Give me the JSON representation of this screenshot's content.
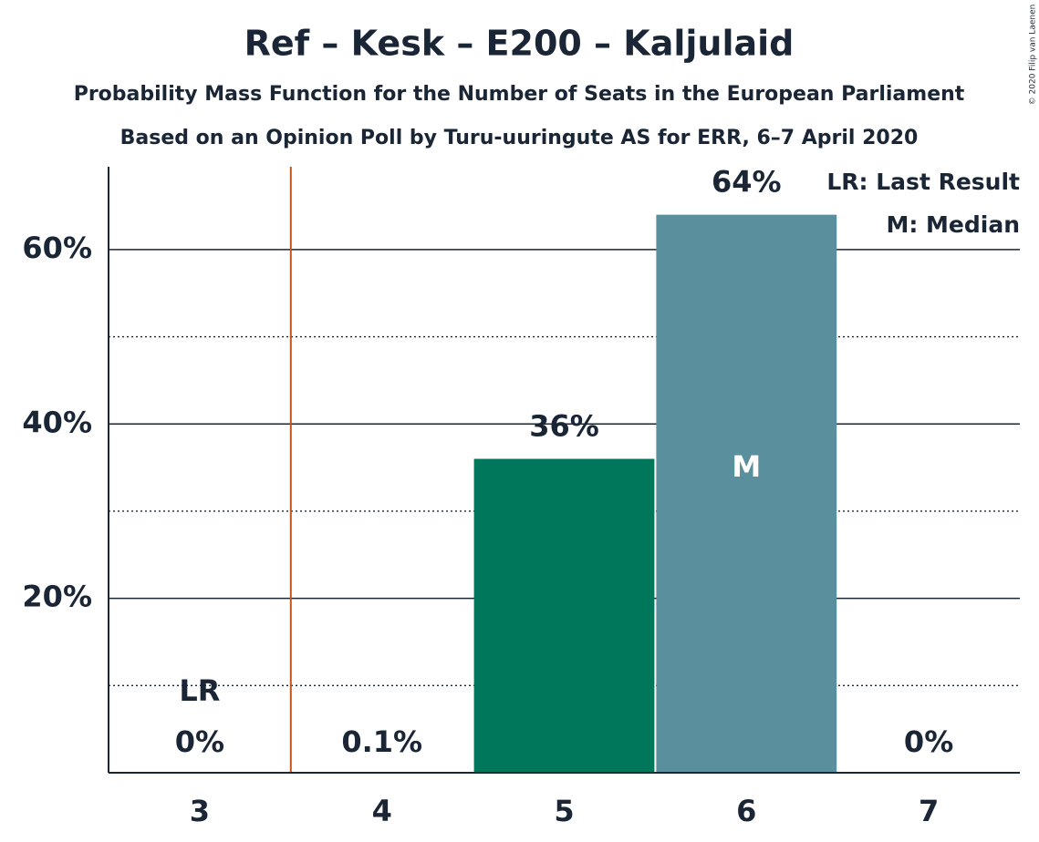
{
  "chart_data": {
    "type": "bar",
    "title": "Ref – Kesk – E200 – Kaljulaid",
    "subtitle": "Probability Mass Function for the Number of Seats in the European Parliament",
    "subtitle2": "Based on an Opinion Poll by Turu-uuringute AS for ERR, 6–7 April 2020",
    "categories": [
      "3",
      "4",
      "5",
      "6",
      "7"
    ],
    "values": [
      0,
      0.1,
      36,
      64,
      0
    ],
    "value_labels": [
      "0%",
      "0.1%",
      "36%",
      "64%",
      "0%"
    ],
    "colors": [
      "#00765a",
      "#00765a",
      "#00765a",
      "#5a8f9e",
      "#5a8f9e"
    ],
    "ylim": [
      0,
      69.5
    ],
    "yticks": [
      {
        "value": 20,
        "label": "20%"
      },
      {
        "value": 40,
        "label": "40%"
      },
      {
        "value": 60,
        "label": "60%"
      }
    ],
    "minor_yticks": [
      10,
      30,
      50
    ],
    "grid": true,
    "last_result": {
      "category": "3",
      "label": "LR",
      "color": "#c0561b"
    },
    "median": {
      "category": "6",
      "label": "M"
    },
    "legend": [
      "LR: Last Result",
      "M: Median"
    ],
    "legend_position": "upper right",
    "copyright": "© 2020 Filip van Laenen"
  }
}
